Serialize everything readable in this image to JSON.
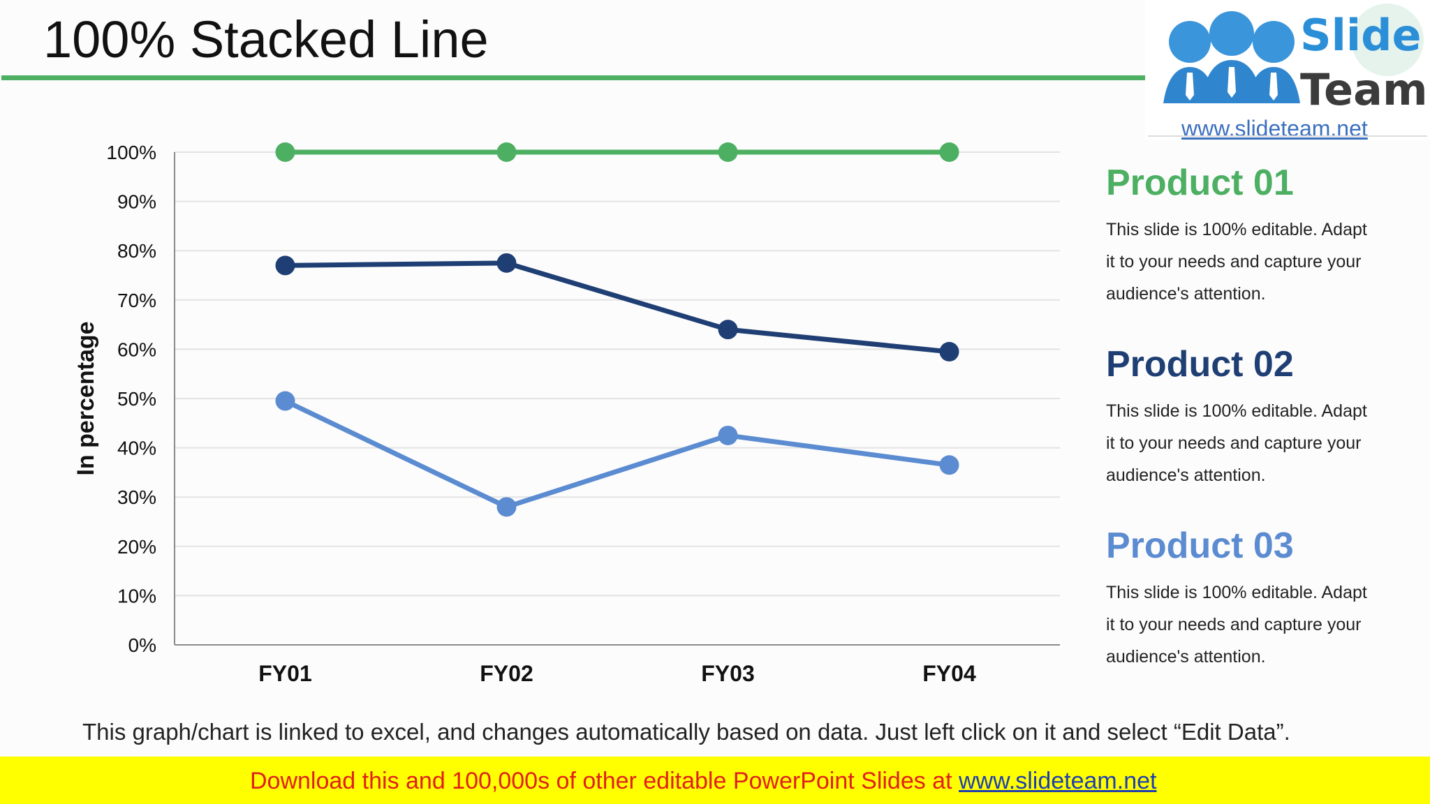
{
  "title": "100% Stacked Line",
  "logo": {
    "brand_top": "Slide",
    "brand_bottom": "Team",
    "url": "www.slideteam.net"
  },
  "products": [
    {
      "name": "Product 01",
      "color": "#4caf62",
      "line1": "This slide is 100% editable. Adapt",
      "line2": "it to your needs and capture your",
      "line3": "audience's attention."
    },
    {
      "name": "Product 02",
      "color": "#1f3f74",
      "line1": "This slide is 100% editable. Adapt",
      "line2": "it to your needs and capture your",
      "line3": "audience's attention."
    },
    {
      "name": "Product 03",
      "color": "#5b8bd0",
      "line1": "This slide is 100% editable. Adapt",
      "line2": "it to your needs and capture your",
      "line3": "audience's attention."
    }
  ],
  "footnote": "This graph/chart is linked to excel, and changes automatically based on data. Just left click on it and select “Edit Data”.",
  "banner": {
    "text": "Download this and 100,000s of other editable PowerPoint Slides at ",
    "link": "www.slideteam.net"
  },
  "chart_data": {
    "type": "line",
    "categories": [
      "FY01",
      "FY02",
      "FY03",
      "FY04"
    ],
    "ylabel": "In percentage",
    "xlabel": "",
    "ylim": [
      0,
      100
    ],
    "yticks": [
      "0%",
      "10%",
      "20%",
      "30%",
      "40%",
      "50%",
      "60%",
      "70%",
      "80%",
      "90%",
      "100%"
    ],
    "grid": true,
    "series": [
      {
        "name": "Product 01",
        "color": "#4caf62",
        "values": [
          100,
          100,
          100,
          100
        ]
      },
      {
        "name": "Product 02",
        "color": "#1f3f74",
        "values": [
          77,
          77.5,
          64,
          59.5
        ]
      },
      {
        "name": "Product 03",
        "color": "#5b8bd0",
        "values": [
          49.5,
          28,
          42.5,
          36.5
        ]
      }
    ]
  }
}
